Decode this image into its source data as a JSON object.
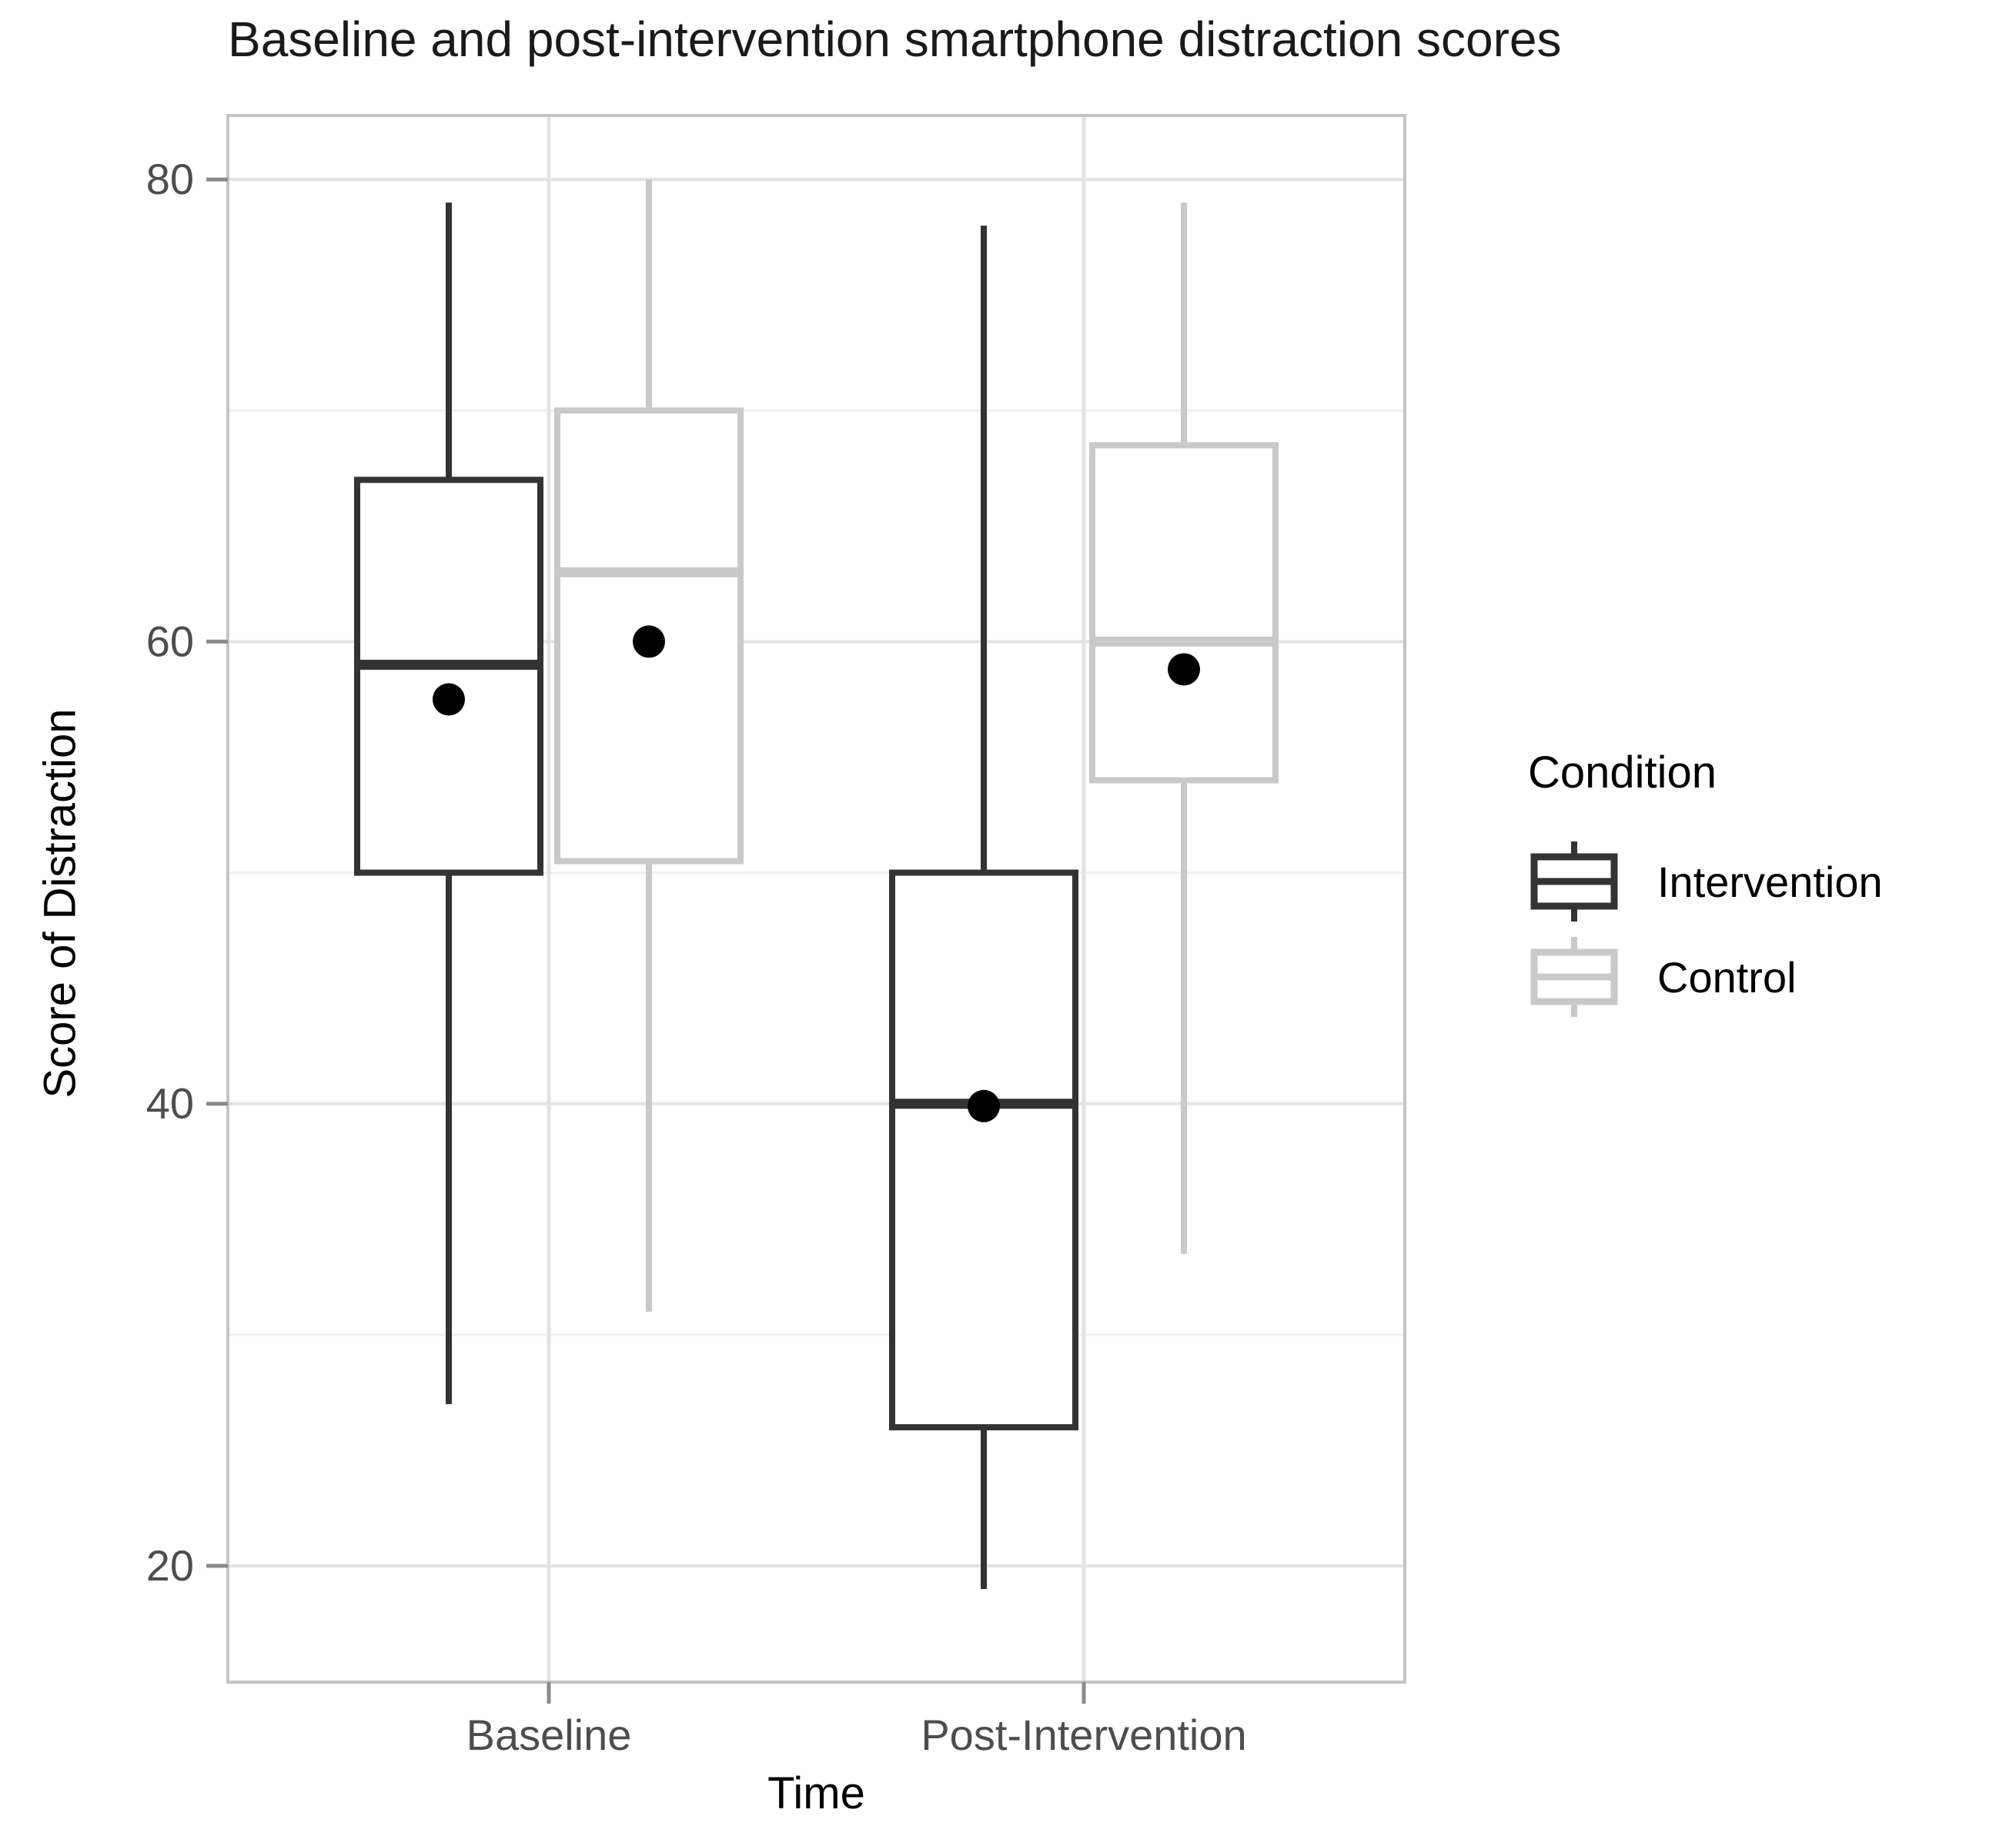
{
  "title": "Baseline and post-intervention smartphone distraction scores",
  "axes": {
    "x": {
      "title": "Time",
      "categories": [
        "Baseline",
        "Post-Intervention"
      ]
    },
    "y": {
      "title": "Score of Distraction",
      "ticks": [
        20,
        40,
        60,
        80
      ],
      "minor_ticks": [
        30,
        50,
        70
      ],
      "range": [
        14.97,
        82.77
      ]
    }
  },
  "legend": {
    "title": "Condition",
    "items": [
      {
        "label": "Intervention",
        "color": "#333333"
      },
      {
        "label": "Control",
        "color": "#c9c9c9"
      }
    ]
  },
  "chart_data": {
    "type": "boxplot",
    "categories": [
      "Baseline",
      "Post-Intervention"
    ],
    "grid": "on",
    "legend_position": "right",
    "series": [
      {
        "name": "Intervention",
        "color": "#333333",
        "boxes": [
          {
            "category": "Baseline",
            "min": 27,
            "q1": 50,
            "median": 59,
            "q3": 67,
            "max": 79,
            "mean": 57.5
          },
          {
            "category": "Post-Intervention",
            "min": 19,
            "q1": 26,
            "median": 40,
            "q3": 50,
            "max": 78,
            "mean": 39.9
          }
        ]
      },
      {
        "name": "Control",
        "color": "#c9c9c9",
        "boxes": [
          {
            "category": "Baseline",
            "min": 31,
            "q1": 50.5,
            "median": 63,
            "q3": 70,
            "max": 80,
            "mean": 60
          },
          {
            "category": "Post-Intervention",
            "min": 33.5,
            "q1": 54,
            "median": 60,
            "q3": 68.5,
            "max": 79,
            "mean": 58.8
          }
        ]
      }
    ],
    "title": "Baseline and post-intervention smartphone distraction scores",
    "xlabel": "Time",
    "ylabel": "Score of Distraction",
    "ylim": [
      14.97,
      82.77
    ]
  },
  "colors": {
    "background": "#ffffff",
    "panel_border": "#c4c4c4",
    "grid_major": "#e3e3e3",
    "grid_minor": "#f0f0f0",
    "tick_mark": "#8a8a8a",
    "tick_label": "#4d4d4d",
    "axis_title": "#000000",
    "title_text": "#1a1a1a",
    "mean_point": "#000000",
    "intervention": "#333333",
    "control": "#c9c9c9"
  }
}
